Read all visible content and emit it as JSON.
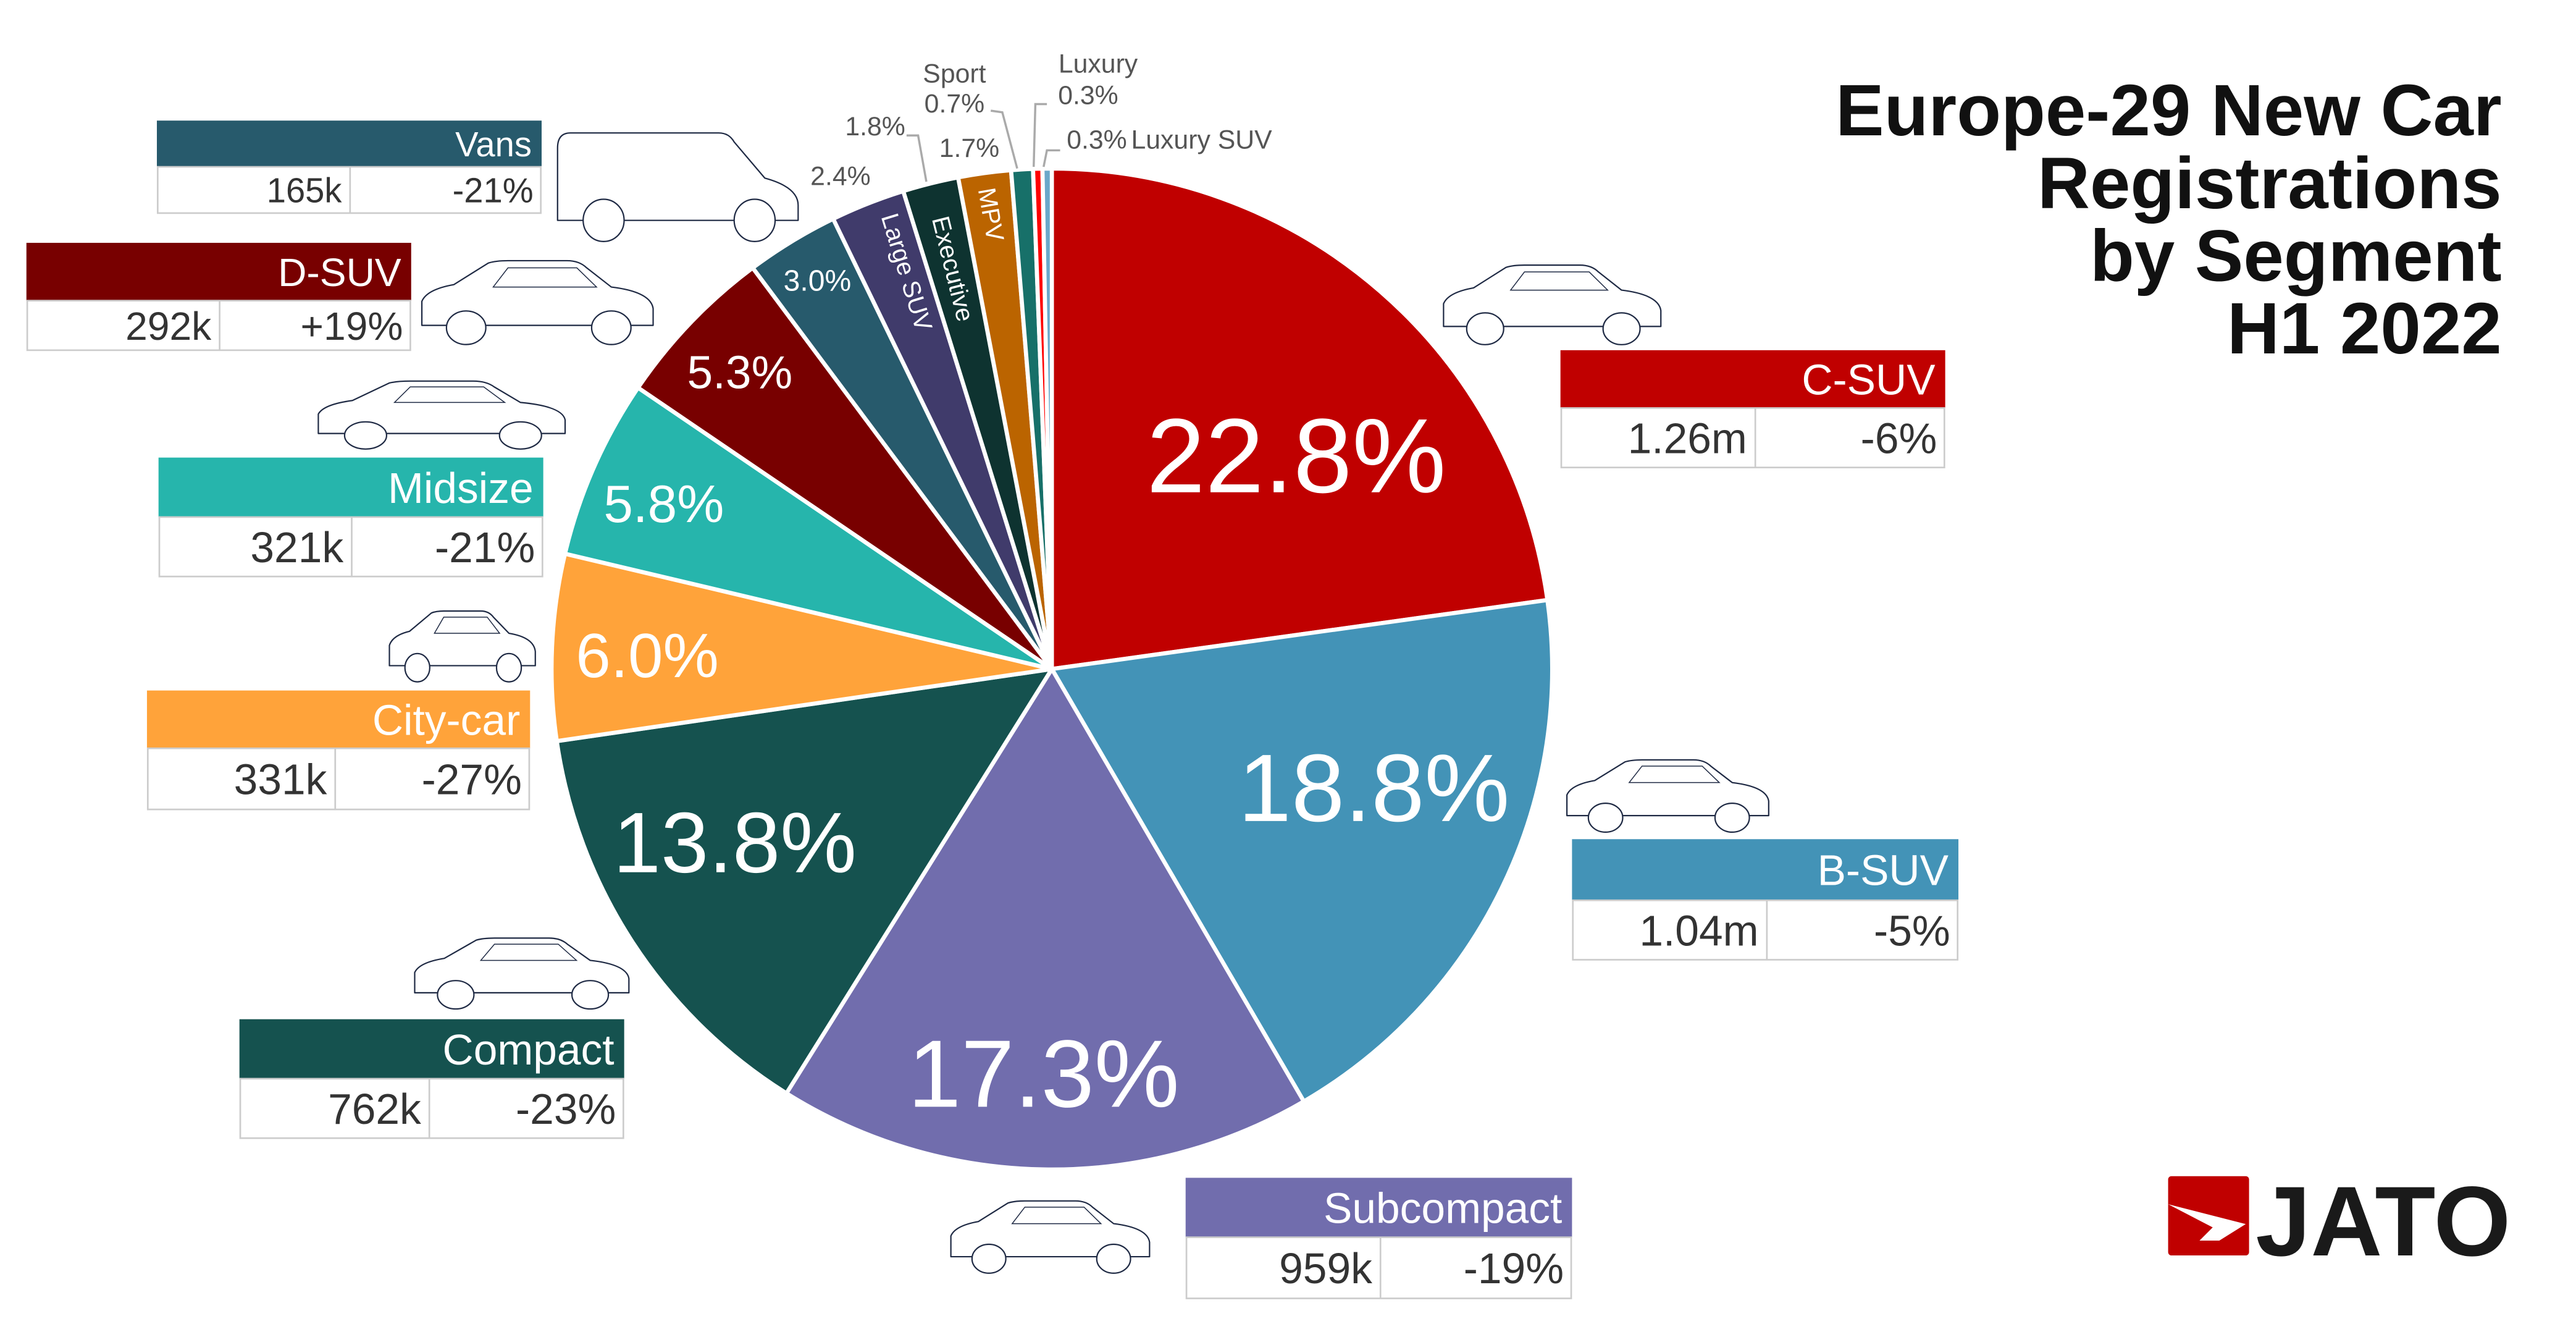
{
  "title": {
    "lines": [
      "Europe-29 New Car",
      "Registrations",
      "by Segment",
      "H1 2022"
    ]
  },
  "logo": {
    "text": "JATO",
    "color": "#C00000"
  },
  "chart_data": {
    "type": "pie",
    "start": "12 o'clock",
    "direction": "clockwise",
    "unit": "%",
    "segments": [
      {
        "name": "C-SUV",
        "share": 22.8,
        "share_label": "22.8%",
        "volume": "1.26m",
        "change": "-6%",
        "color": "#C00000"
      },
      {
        "name": "B-SUV",
        "share": 18.8,
        "share_label": "18.8%",
        "volume": "1.04m",
        "change": "-5%",
        "color": "#4393B7"
      },
      {
        "name": "Subcompact",
        "share": 17.3,
        "share_label": "17.3%",
        "volume": "959k",
        "change": "-19%",
        "color": "#716DAD"
      },
      {
        "name": "Compact",
        "share": 13.8,
        "share_label": "13.8%",
        "volume": "762k",
        "change": "-23%",
        "color": "#15524F"
      },
      {
        "name": "City-car",
        "share": 6.0,
        "share_label": "6.0%",
        "volume": "331k",
        "change": "-27%",
        "color": "#FFA33A"
      },
      {
        "name": "Midsize",
        "share": 5.8,
        "share_label": "5.8%",
        "volume": "321k",
        "change": "-21%",
        "color": "#26B5AC"
      },
      {
        "name": "D-SUV",
        "share": 5.3,
        "share_label": "5.3%",
        "volume": "292k",
        "change": "+19%",
        "color": "#780000"
      },
      {
        "name": "Vans",
        "share": 3.0,
        "share_label": "3.0%",
        "volume": "165k",
        "change": "-21%",
        "color": "#275A6C"
      },
      {
        "name": "Large SUV",
        "share": 2.4,
        "share_label": "2.4%",
        "color": "#403B6B"
      },
      {
        "name": "Executive",
        "share": 1.8,
        "share_label": "1.8%",
        "color": "#0E3330"
      },
      {
        "name": "MPV",
        "share": 1.7,
        "share_label": "1.7%",
        "color": "#BB6400"
      },
      {
        "name": "Sport",
        "share": 0.7,
        "share_label": "0.7%",
        "color": "#177069"
      },
      {
        "name": "Luxury",
        "share": 0.3,
        "share_label": "0.3%",
        "color": "#FF0000"
      },
      {
        "name": "Luxury SUV",
        "share": 0.3,
        "share_label": "0.3%",
        "color": "#6AA8CA"
      }
    ]
  }
}
